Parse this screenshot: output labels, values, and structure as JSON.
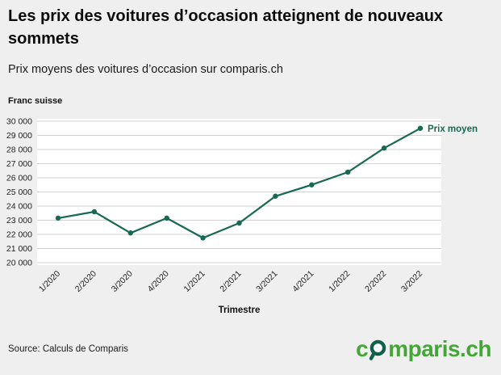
{
  "header": {
    "title": "Les prix des voitures d’occasion atteignent de nouveaux sommets",
    "subtitle": "Prix moyens des voitures d’occasion sur comparis.ch"
  },
  "chart_data": {
    "type": "line",
    "unit_label": "Franc suisse",
    "xlabel": "Trimestre",
    "series_label": "Prix moyen",
    "categories": [
      "1/2020",
      "2/2020",
      "3/2020",
      "4/2020",
      "1/2021",
      "2/2021",
      "3/2021",
      "4/2021",
      "1/2022",
      "2/2022",
      "3/2022"
    ],
    "values": [
      23150,
      23600,
      22100,
      23150,
      21750,
      22800,
      24700,
      25500,
      26400,
      28100,
      29500
    ],
    "ylim": [
      20000,
      30000
    ],
    "ytick_step": 1000,
    "grid": true,
    "legend_position": "end-of-line",
    "line_color": "#176953",
    "grid_color": "#d2d2d2",
    "plot_bg": "#ffffff",
    "tick_color": "#222222"
  },
  "footer": {
    "source": "Source: Calculs de Comparis",
    "logo_prefix": "c",
    "logo_suffix": "mparis.ch",
    "logo_color": "#46a538",
    "magnifier_color": "#11604b",
    "logo_icon": "magnifier-icon"
  }
}
